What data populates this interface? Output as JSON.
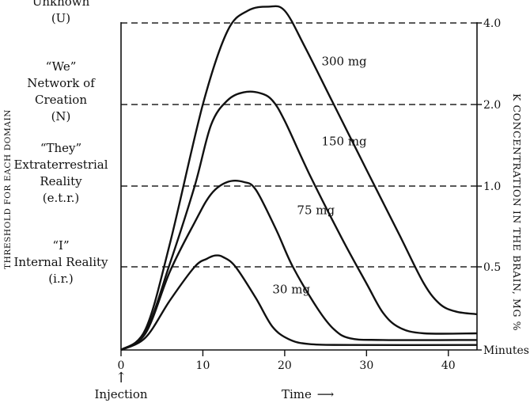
{
  "chart_data": {
    "type": "line",
    "title": "",
    "xlabel": "Time",
    "xlabel_arrow": "⟶",
    "injection_label": "Injection",
    "injection_arrow": "↑",
    "left_axis_label": "THRESHOLD FOR EACH DOMAIN",
    "right_axis_label": "K CONCENTRATION IN THE BRAIN, MG %",
    "xlim": [
      0,
      43.5
    ],
    "x_ticks": [
      0,
      10,
      20,
      30,
      40
    ],
    "right_ticks": [
      {
        "label": "4.0",
        "level": 4
      },
      {
        "label": "2.0",
        "level": 3
      },
      {
        "label": "1.0",
        "level": 2
      },
      {
        "label": "0.5",
        "level": 1
      },
      {
        "label": "Minutes",
        "level": 0
      }
    ],
    "domains": [
      {
        "level": 4,
        "lines": [
          "Unknown",
          "(U)"
        ]
      },
      {
        "level": 3,
        "lines": [
          "“We”",
          "Network of",
          "Creation",
          "(N)"
        ]
      },
      {
        "level": 2,
        "lines": [
          "“They”",
          "Extraterrestrial",
          "Reality",
          "(e.t.r.)"
        ]
      },
      {
        "level": 1,
        "lines": [
          "“I”",
          "Internal Reality",
          "(i.r.)"
        ]
      }
    ],
    "series": [
      {
        "name": "300 mg",
        "label_at": [
          24.5,
          3.48
        ],
        "points": [
          [
            0,
            0
          ],
          [
            3,
            0.25
          ],
          [
            6,
            1.3
          ],
          [
            10,
            3.0
          ],
          [
            13,
            3.9
          ],
          [
            15.5,
            4.15
          ],
          [
            18,
            4.2
          ],
          [
            20,
            4.15
          ],
          [
            22.5,
            3.7
          ],
          [
            26,
            3.0
          ],
          [
            30,
            2.2
          ],
          [
            34,
            1.4
          ],
          [
            37,
            0.8
          ],
          [
            39,
            0.55
          ],
          [
            41,
            0.46
          ],
          [
            43.5,
            0.43
          ]
        ]
      },
      {
        "name": "150 mg",
        "label_at": [
          24.5,
          2.5
        ],
        "points": [
          [
            0,
            0
          ],
          [
            3,
            0.22
          ],
          [
            6,
            1.05
          ],
          [
            9,
            2.0
          ],
          [
            11,
            2.75
          ],
          [
            13,
            3.05
          ],
          [
            15,
            3.15
          ],
          [
            17,
            3.14
          ],
          [
            18.5,
            3.05
          ],
          [
            20,
            2.8
          ],
          [
            23,
            2.15
          ],
          [
            27,
            1.35
          ],
          [
            30,
            0.8
          ],
          [
            32,
            0.45
          ],
          [
            34,
            0.27
          ],
          [
            37,
            0.2
          ],
          [
            43.5,
            0.2
          ]
        ]
      },
      {
        "name": "75 mg",
        "label_at": [
          21.5,
          1.65
        ],
        "points": [
          [
            0,
            0
          ],
          [
            3,
            0.2
          ],
          [
            6,
            0.95
          ],
          [
            9,
            1.55
          ],
          [
            11,
            1.9
          ],
          [
            13,
            2.05
          ],
          [
            15,
            2.05
          ],
          [
            16.5,
            1.95
          ],
          [
            19,
            1.45
          ],
          [
            21,
            1.0
          ],
          [
            24,
            0.5
          ],
          [
            26,
            0.25
          ],
          [
            28,
            0.14
          ],
          [
            32,
            0.12
          ],
          [
            43.5,
            0.12
          ]
        ]
      },
      {
        "name": "30 mg",
        "label_at": [
          18.5,
          0.68
        ],
        "points": [
          [
            0,
            0
          ],
          [
            3,
            0.15
          ],
          [
            6,
            0.6
          ],
          [
            9,
            1.0
          ],
          [
            10.5,
            1.1
          ],
          [
            11.5,
            1.14
          ],
          [
            12.5,
            1.12
          ],
          [
            14,
            1.0
          ],
          [
            16.5,
            0.62
          ],
          [
            18.5,
            0.28
          ],
          [
            20.5,
            0.13
          ],
          [
            23,
            0.07
          ],
          [
            28,
            0.06
          ],
          [
            43.5,
            0.06
          ]
        ]
      }
    ]
  }
}
